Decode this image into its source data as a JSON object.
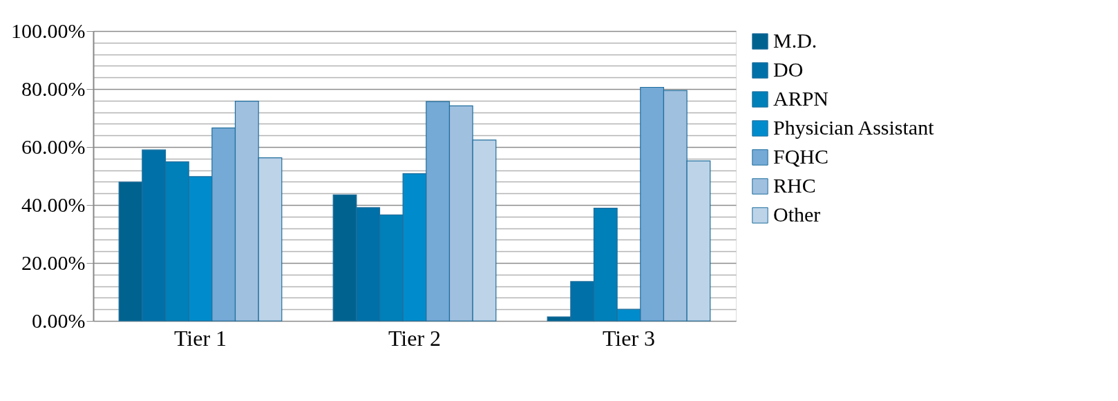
{
  "chart_data": {
    "type": "bar",
    "categories": [
      "Tier 1",
      "Tier 2",
      "Tier 3"
    ],
    "series": [
      {
        "name": "M.D.",
        "color": "#00628f",
        "values": [
          47.9,
          43.5,
          1.4
        ]
      },
      {
        "name": "DO",
        "color": "#0070a8",
        "values": [
          59.0,
          39.1,
          13.6
        ]
      },
      {
        "name": "ARPN",
        "color": "#0080b8",
        "values": [
          54.9,
          36.6,
          38.9
        ]
      },
      {
        "name": "Physician Assistant",
        "color": "#008ccc",
        "values": [
          49.8,
          50.8,
          4.0
        ]
      },
      {
        "name": "FQHC",
        "color": "#75a9d6",
        "values": [
          66.6,
          75.7,
          80.6
        ]
      },
      {
        "name": "RHC",
        "color": "#a0c0e0",
        "values": [
          75.8,
          74.2,
          79.5
        ]
      },
      {
        "name": "Other",
        "color": "#bdd3e8",
        "values": [
          56.3,
          62.4,
          55.2
        ]
      }
    ],
    "ylim": [
      0,
      100
    ],
    "yticks": [
      {
        "value": 0,
        "label": "0.00%"
      },
      {
        "value": 4,
        "label": null
      },
      {
        "value": 8,
        "label": null
      },
      {
        "value": 12,
        "label": null
      },
      {
        "value": 16,
        "label": null
      },
      {
        "value": 20,
        "label": "20.00%"
      },
      {
        "value": 24,
        "label": null
      },
      {
        "value": 28,
        "label": null
      },
      {
        "value": 32,
        "label": null
      },
      {
        "value": 36,
        "label": null
      },
      {
        "value": 40,
        "label": "40.00%"
      },
      {
        "value": 44,
        "label": null
      },
      {
        "value": 48,
        "label": null
      },
      {
        "value": 52,
        "label": null
      },
      {
        "value": 56,
        "label": null
      },
      {
        "value": 60,
        "label": "60.00%"
      },
      {
        "value": 64,
        "label": null
      },
      {
        "value": 68,
        "label": null
      },
      {
        "value": 72,
        "label": null
      },
      {
        "value": 76,
        "label": null
      },
      {
        "value": 80,
        "label": "80.00%"
      },
      {
        "value": 84,
        "label": null
      },
      {
        "value": 88,
        "label": null
      },
      {
        "value": 92,
        "label": null
      },
      {
        "value": 96,
        "label": null
      },
      {
        "value": 100,
        "label": "100.00%"
      }
    ],
    "grid": true,
    "legend": "right"
  }
}
